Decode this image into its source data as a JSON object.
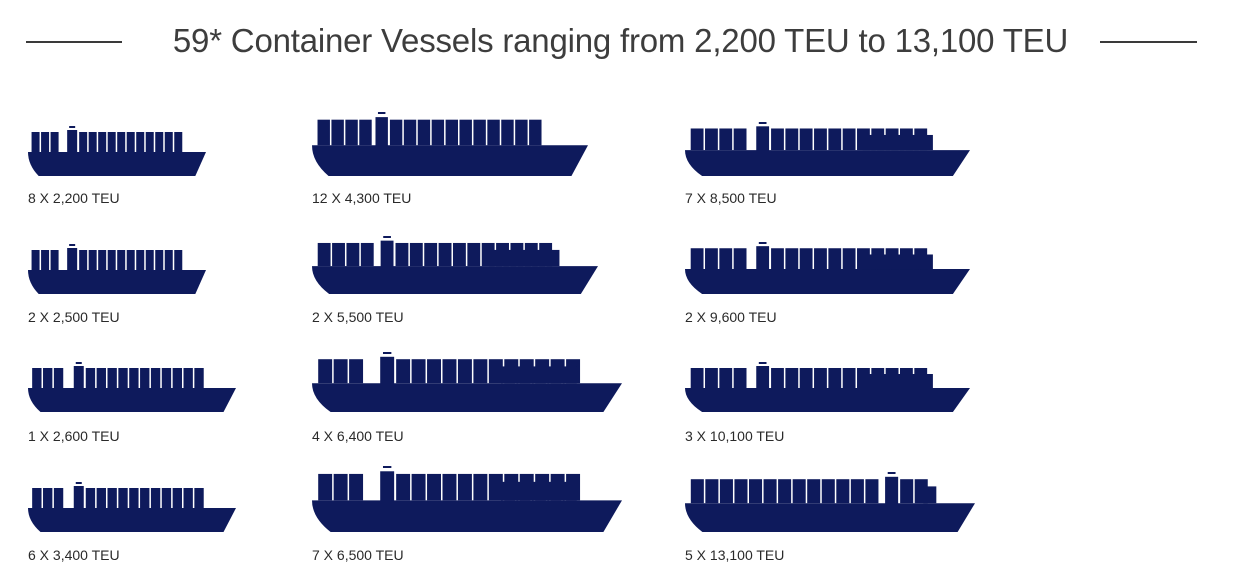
{
  "title": "59* Container Vessels ranging from 2,200 TEU to 13,100 TEU",
  "colors": {
    "ship": "#0e1a5c",
    "text": "#2a2a2a",
    "title": "#3d3d3d"
  },
  "fleet": [
    {
      "label": "8 X 2,200 TEU"
    },
    {
      "label": "12 X 4,300 TEU"
    },
    {
      "label": "7 X 8,500 TEU"
    },
    {
      "label": "2 X 2,500 TEU"
    },
    {
      "label": "2 X 5,500 TEU"
    },
    {
      "label": "2 X 9,600 TEU"
    },
    {
      "label": "1 X 2,600 TEU"
    },
    {
      "label": "4 X 6,400 TEU"
    },
    {
      "label": "3 X 10,100 TEU"
    },
    {
      "label": "6 X 3,400 TEU"
    },
    {
      "label": "7 X 6,500 TEU"
    },
    {
      "label": "5 X 13,100 TEU"
    }
  ]
}
